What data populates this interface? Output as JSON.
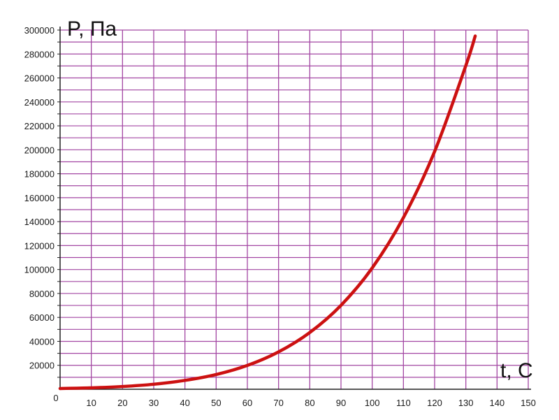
{
  "chart_data": {
    "type": "line",
    "title": "",
    "xlabel": "t, C",
    "ylabel": "P, Па",
    "xlim": [
      0,
      150
    ],
    "ylim": [
      0,
      300000
    ],
    "x_ticks": [
      0,
      10,
      20,
      30,
      40,
      50,
      60,
      70,
      80,
      90,
      100,
      110,
      120,
      130,
      140,
      150
    ],
    "x_tick_labels": [
      "0",
      "10",
      "20",
      "30",
      "40",
      "50",
      "60",
      "70",
      "80",
      "90",
      "100",
      "110",
      "120",
      "130",
      "140",
      "150"
    ],
    "y_ticks": [
      20000,
      40000,
      60000,
      80000,
      100000,
      120000,
      140000,
      160000,
      180000,
      200000,
      220000,
      240000,
      260000,
      280000,
      300000
    ],
    "y_tick_labels": [
      "20000",
      "40000",
      "60000",
      "80000",
      "100000",
      "120000",
      "140000",
      "160000",
      "180000",
      "200000",
      "220000",
      "240000",
      "260000",
      "280000",
      "300000"
    ],
    "grid": true,
    "colors": {
      "grid": "#a347a3",
      "line": "#cc1111",
      "axis": "#222222"
    },
    "series": [
      {
        "x": [
          0,
          10,
          20,
          30,
          40,
          50,
          60,
          70,
          80,
          90,
          100,
          110,
          120,
          130,
          133
        ],
        "values": [
          600,
          1200,
          2300,
          4200,
          7400,
          12300,
          19900,
          31200,
          47400,
          70100,
          101300,
          143300,
          198600,
          270300,
          295000
        ]
      }
    ]
  }
}
